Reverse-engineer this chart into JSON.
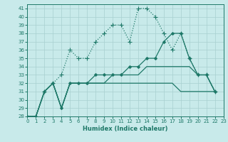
{
  "xlabel": "Humidex (Indice chaleur)",
  "background_color": "#c8eaea",
  "grid_color": "#a8d0d0",
  "line_color": "#1e7868",
  "xlim": [
    0,
    23
  ],
  "ylim": [
    28,
    41.5
  ],
  "xticks": [
    0,
    1,
    2,
    3,
    4,
    5,
    6,
    7,
    8,
    9,
    10,
    11,
    12,
    13,
    14,
    15,
    16,
    17,
    18,
    19,
    20,
    21,
    22,
    23
  ],
  "yticks": [
    28,
    29,
    30,
    31,
    32,
    33,
    34,
    35,
    36,
    37,
    38,
    39,
    40,
    41
  ],
  "series": [
    {
      "y": [
        28,
        28,
        31,
        32,
        33,
        36,
        35,
        35,
        37,
        38,
        39,
        39,
        37,
        41,
        41,
        40,
        38,
        36,
        38,
        35,
        33,
        33,
        31
      ],
      "x": [
        0,
        1,
        2,
        3,
        4,
        5,
        6,
        7,
        8,
        9,
        10,
        11,
        12,
        13,
        14,
        15,
        16,
        17,
        18,
        19,
        20,
        21,
        22
      ],
      "linestyle": "dotted",
      "marker": "+",
      "markersize": 4,
      "linewidth": 0.9
    },
    {
      "y": [
        28,
        28,
        31,
        32,
        29,
        32,
        32,
        32,
        33,
        33,
        33,
        33,
        34,
        34,
        35,
        35,
        37,
        38,
        38,
        35,
        33,
        33,
        31
      ],
      "x": [
        0,
        1,
        2,
        3,
        4,
        5,
        6,
        7,
        8,
        9,
        10,
        11,
        12,
        13,
        14,
        15,
        16,
        17,
        18,
        19,
        20,
        21,
        22
      ],
      "linestyle": "solid",
      "marker": "D",
      "markersize": 2,
      "linewidth": 0.9
    },
    {
      "y": [
        28,
        28,
        31,
        32,
        29,
        32,
        32,
        32,
        32,
        32,
        33,
        33,
        33,
        33,
        34,
        34,
        34,
        34,
        34,
        34,
        33,
        33,
        31
      ],
      "x": [
        0,
        1,
        2,
        3,
        4,
        5,
        6,
        7,
        8,
        9,
        10,
        11,
        12,
        13,
        14,
        15,
        16,
        17,
        18,
        19,
        20,
        21,
        22
      ],
      "linestyle": "solid",
      "marker": null,
      "markersize": 0,
      "linewidth": 0.9
    },
    {
      "y": [
        28,
        28,
        31,
        32,
        29,
        32,
        32,
        32,
        32,
        32,
        32,
        32,
        32,
        32,
        32,
        32,
        32,
        32,
        31,
        31,
        31,
        31,
        31
      ],
      "x": [
        0,
        1,
        2,
        3,
        4,
        5,
        6,
        7,
        8,
        9,
        10,
        11,
        12,
        13,
        14,
        15,
        16,
        17,
        18,
        19,
        20,
        21,
        22
      ],
      "linestyle": "solid",
      "marker": null,
      "markersize": 0,
      "linewidth": 0.9
    }
  ]
}
